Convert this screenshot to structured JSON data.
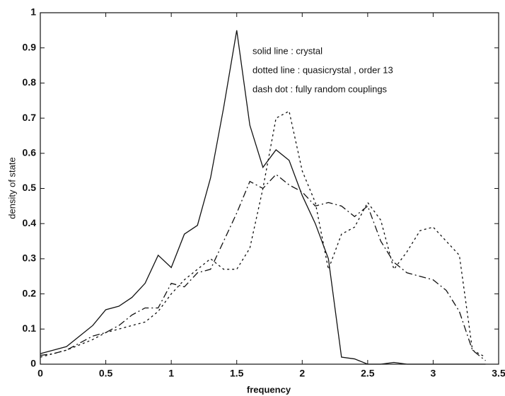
{
  "chart_data": {
    "type": "line",
    "xlabel": "frequency",
    "ylabel": "density of state",
    "annotations": [
      "solid line : crystal",
      "dotted line : quasicrystal , order 13",
      "dash dot : fully random couplings"
    ],
    "x": [
      0,
      0.1,
      0.2,
      0.3,
      0.4,
      0.5,
      0.6,
      0.7,
      0.8,
      0.9,
      1.0,
      1.1,
      1.2,
      1.3,
      1.4,
      1.5,
      1.6,
      1.7,
      1.8,
      1.9,
      2.0,
      2.1,
      2.2,
      2.3,
      2.4,
      2.5,
      2.6,
      2.7,
      2.8,
      2.9,
      3.0,
      3.1,
      3.2,
      3.3,
      3.4
    ],
    "series": [
      {
        "style": "solid",
        "color": "#111111",
        "values": [
          0.03,
          0.04,
          0.05,
          0.08,
          0.11,
          0.155,
          0.165,
          0.19,
          0.23,
          0.31,
          0.275,
          0.37,
          0.395,
          0.53,
          0.73,
          0.95,
          0.68,
          0.56,
          0.61,
          0.58,
          0.48,
          0.4,
          0.3,
          0.02,
          0.015,
          0,
          0,
          0.005,
          0,
          0,
          0,
          0,
          0,
          0,
          0
        ]
      },
      {
        "style": "dotted",
        "color": "#111111",
        "values": [
          0.02,
          0.03,
          0.04,
          0.055,
          0.07,
          0.09,
          0.1,
          0.11,
          0.12,
          0.15,
          0.2,
          0.24,
          0.27,
          0.3,
          0.27,
          0.27,
          0.33,
          0.5,
          0.7,
          0.72,
          0.55,
          0.46,
          0.27,
          0.37,
          0.39,
          0.46,
          0.41,
          0.27,
          0.32,
          0.38,
          0.39,
          0.35,
          0.31,
          0.04,
          0.02
        ]
      },
      {
        "style": "dashdot",
        "color": "#111111",
        "values": [
          0.025,
          0.03,
          0.04,
          0.06,
          0.08,
          0.09,
          0.11,
          0.14,
          0.16,
          0.16,
          0.23,
          0.22,
          0.26,
          0.27,
          0.35,
          0.43,
          0.52,
          0.5,
          0.54,
          0.51,
          0.49,
          0.45,
          0.46,
          0.45,
          0.42,
          0.45,
          0.35,
          0.29,
          0.26,
          0.25,
          0.24,
          0.21,
          0.15,
          0.04,
          0.01
        ]
      }
    ],
    "xlim": [
      0,
      3.5
    ],
    "xticks": [
      0,
      0.5,
      1,
      1.5,
      2,
      2.5,
      3,
      3.5
    ],
    "ylim": [
      0,
      1
    ],
    "yticks": [
      0,
      0.1,
      0.2,
      0.3,
      0.4,
      0.5,
      0.6,
      0.7,
      0.8,
      0.9,
      1
    ]
  }
}
